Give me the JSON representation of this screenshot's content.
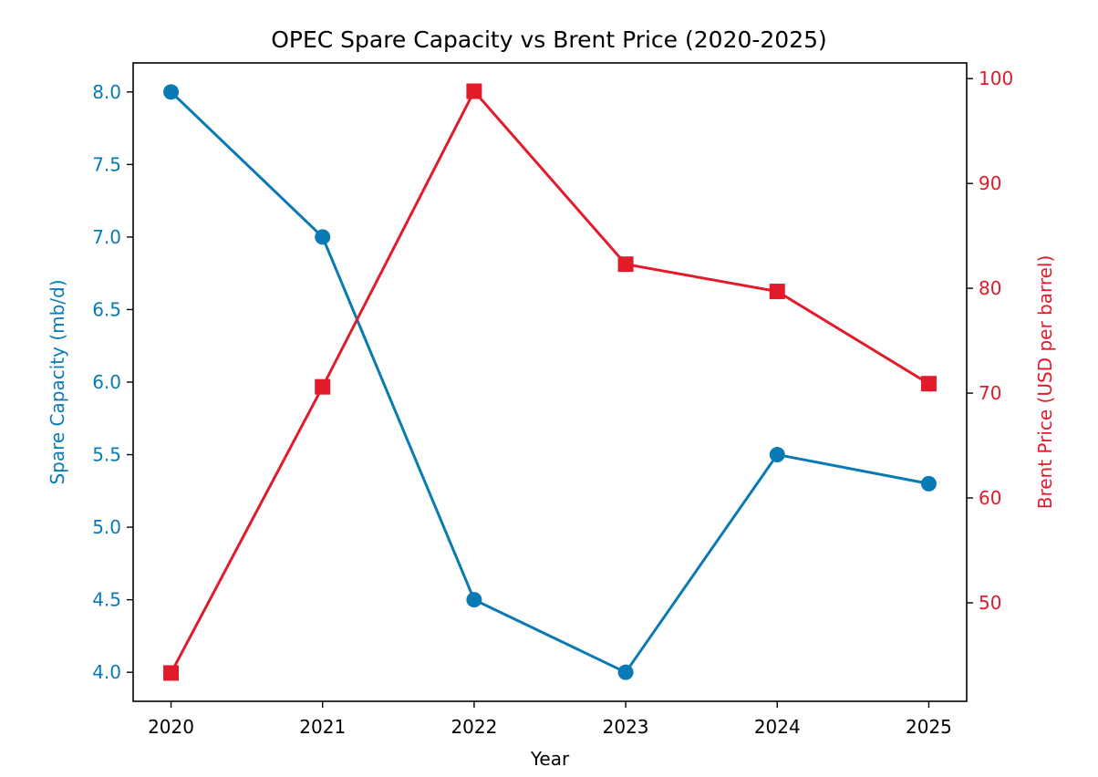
{
  "chart_data": {
    "type": "line",
    "title": "OPEC Spare Capacity vs Brent Price (2020-2025)",
    "xlabel": "Year",
    "x": [
      2020,
      2021,
      2022,
      2023,
      2024,
      2025
    ],
    "x_tick_labels": [
      "2020",
      "2021",
      "2022",
      "2023",
      "2024",
      "2025"
    ],
    "xlim": [
      2019.75,
      2025.25
    ],
    "grid": false,
    "series": [
      {
        "name": "Spare Capacity",
        "axis": "left",
        "ylabel": "Spare Capacity (mb/d)",
        "values": [
          8.0,
          7.0,
          4.5,
          4.0,
          5.5,
          5.3
        ],
        "ylim": [
          3.8,
          8.2
        ],
        "ticks": [
          4.0,
          4.5,
          5.0,
          5.5,
          6.0,
          6.5,
          7.0,
          7.5,
          8.0
        ],
        "tick_labels": [
          "4.0",
          "4.5",
          "5.0",
          "5.5",
          "6.0",
          "6.5",
          "7.0",
          "7.5",
          "8.0"
        ],
        "color": "#0a7ab4",
        "marker": "circle"
      },
      {
        "name": "Brent Price",
        "axis": "right",
        "ylabel": "Brent Price (USD per barrel)",
        "values": [
          43.3,
          70.6,
          98.8,
          82.3,
          79.7,
          70.9
        ],
        "ylim": [
          40.6,
          101.5
        ],
        "ticks": [
          50,
          60,
          70,
          80,
          90,
          100
        ],
        "tick_labels": [
          "50",
          "60",
          "70",
          "80",
          "90",
          "100"
        ],
        "color": "#e31a2a",
        "marker": "square"
      }
    ]
  }
}
